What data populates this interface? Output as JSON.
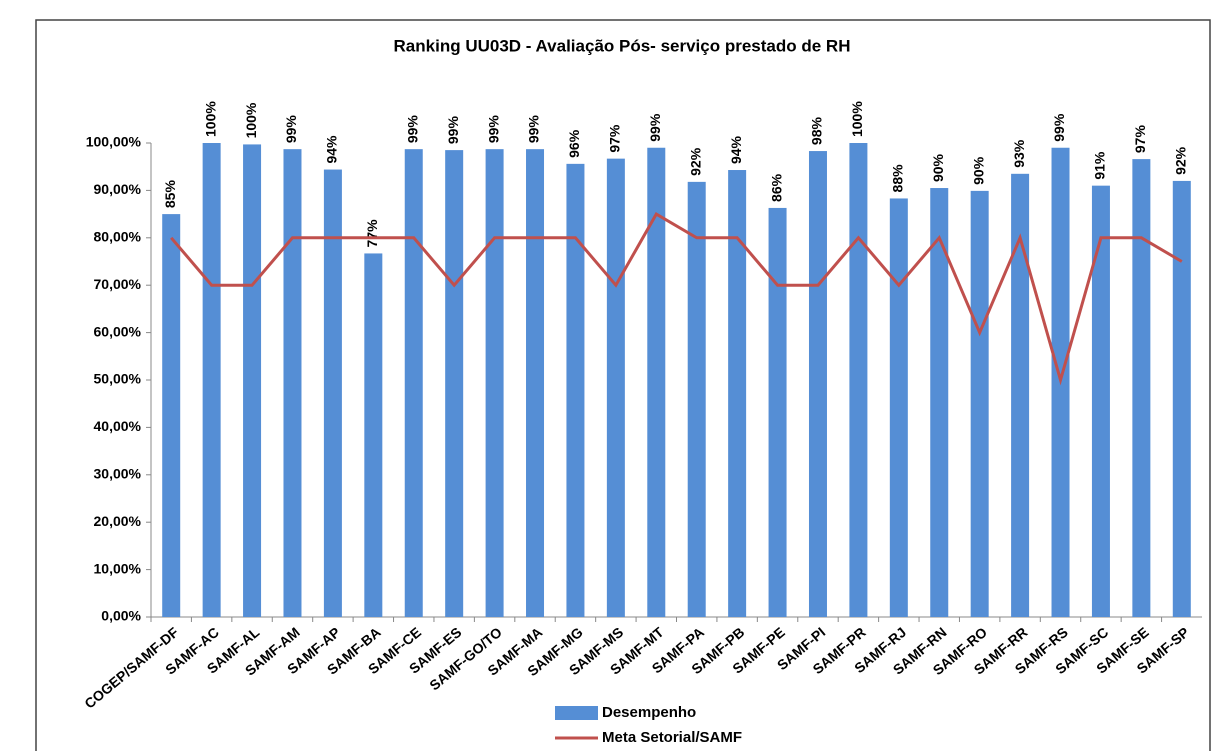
{
  "chart_data": {
    "type": "bar",
    "title": "Ranking UU03D - Avaliação Pós- serviço prestado de RH",
    "categories": [
      "COGEP/SAMF-DF",
      "SAMF-AC",
      "SAMF-AL",
      "SAMF-AM",
      "SAMF-AP",
      "SAMF-BA",
      "SAMF-CE",
      "SAMF-ES",
      "SAMF-GO/TO",
      "SAMF-MA",
      "SAMF-MG",
      "SAMF-MS",
      "SAMF-MT",
      "SAMF-PA",
      "SAMF-PB",
      "SAMF-PE",
      "SAMF-PI",
      "SAMF-PR",
      "SAMF-RJ",
      "SAMF-RN",
      "SAMF-RO",
      "SAMF-RR",
      "SAMF-RS",
      "SAMF-SC",
      "SAMF-SE",
      "SAMF-SP"
    ],
    "series": [
      {
        "name": "Desempenho",
        "type": "bar",
        "color": "#558ed5",
        "values": [
          85,
          100,
          99.7,
          98.7,
          94.4,
          76.7,
          98.7,
          98.5,
          98.7,
          98.7,
          95.6,
          96.7,
          99,
          91.8,
          94.3,
          86.3,
          98.3,
          100,
          88.3,
          90.5,
          89.9,
          93.5,
          99,
          91,
          96.6,
          92
        ],
        "value_labels": [
          "85%",
          "100%",
          "100%",
          "99%",
          "94%",
          "77%",
          "99%",
          "99%",
          "99%",
          "99%",
          "96%",
          "97%",
          "99%",
          "92%",
          "94%",
          "86%",
          "98%",
          "100%",
          "88%",
          "90%",
          "90%",
          "93%",
          "99%",
          "91%",
          "97%",
          "92%"
        ]
      },
      {
        "name": "Meta Setorial/SAMF",
        "type": "line",
        "color": "#c0504d",
        "values": [
          80,
          70,
          70,
          80,
          80,
          80,
          80,
          70,
          80,
          80,
          80,
          70,
          85,
          80,
          80,
          70,
          70,
          80,
          70,
          80,
          60,
          80,
          50,
          80,
          80,
          75
        ]
      }
    ],
    "ylim": [
      0,
      100
    ],
    "yticks": [
      {
        "value": 0,
        "label": "0,00%"
      },
      {
        "value": 10,
        "label": "10,00%"
      },
      {
        "value": 20,
        "label": "20,00%"
      },
      {
        "value": 30,
        "label": "30,00%"
      },
      {
        "value": 40,
        "label": "40,00%"
      },
      {
        "value": 50,
        "label": "50,00%"
      },
      {
        "value": 60,
        "label": "60,00%"
      },
      {
        "value": 70,
        "label": "70,00%"
      },
      {
        "value": 80,
        "label": "80,00%"
      },
      {
        "value": 90,
        "label": "90,00%"
      },
      {
        "value": 100,
        "label": "100,00%"
      }
    ],
    "grid": false,
    "legend": "bottom"
  }
}
